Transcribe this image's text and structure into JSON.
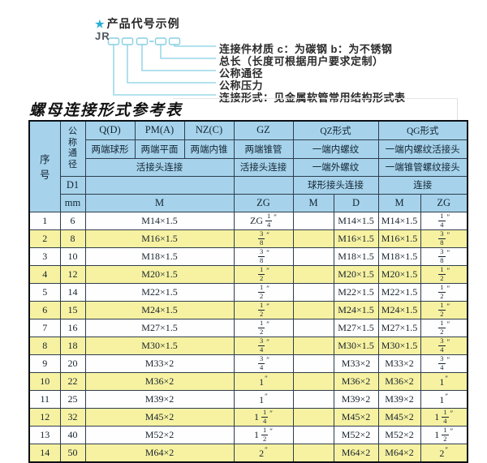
{
  "colors": {
    "header_bg": "#a6d3eb",
    "row_alt_bg": "#f7f2a2",
    "accent_cyan": "#29aed6",
    "line_cyan": "#85cfe3"
  },
  "diagram": {
    "star_label": "产品代号示例",
    "prefix": "JR",
    "box_count": 5,
    "separator": "-",
    "labels": [
      "连接件材质  c：为碳钢  b：为不锈钢",
      "总长（长度可根据用户要求定制）",
      "公称通径",
      "公称压力",
      "连接形式：见金属软管常用结构形式表"
    ]
  },
  "table": {
    "title": "螺母连接形式参考表",
    "unit_inch": "″",
    "header": {
      "seq": "序号",
      "nominal_diameter": "公称通径",
      "d1": "D1",
      "mm": "mm",
      "q": "Q(D)",
      "pm": "PM(A)",
      "nz": "NZ(C)",
      "gz": "GZ",
      "qz": "QZ形式",
      "qg": "QG形式",
      "q_sub": "两端球形",
      "pm_sub": "两端平面",
      "nz_sub": "两端内锥",
      "gz_sub": "两端锥管",
      "qz_sub": "一端内螺纹",
      "qg_sub": "一端内螺纹活接头",
      "union_conn": "活接头连接",
      "gz_conn": "活接头连接",
      "qz_sub2": "一端外螺纹",
      "qg_sub2": "一端锥管螺纹接头",
      "qz_conn": "球形接头连接",
      "qg_conn": "连接",
      "m": "M",
      "zg": "ZG",
      "qz_m": "M",
      "qz_d": "D",
      "qg_m": "M",
      "qg_zg": "ZG"
    },
    "rows": [
      {
        "seq": "1",
        "mm": "6",
        "m": "M14×1.5",
        "gz": {
          "pre": "ZG",
          "frac": [
            "1",
            "4"
          ]
        },
        "qz_m": "",
        "qz_d": "M14×1.5",
        "qg_m": "M14×1.5",
        "qg_zg": {
          "frac": [
            "1",
            "4"
          ]
        }
      },
      {
        "seq": "2",
        "mm": "8",
        "m": "M16×1.5",
        "gz": {
          "frac": [
            "3",
            "8"
          ]
        },
        "qz_m": "",
        "qz_d": "M16×1.5",
        "qg_m": "M16×1.5",
        "qg_zg": {
          "frac": [
            "3",
            "8"
          ]
        }
      },
      {
        "seq": "3",
        "mm": "10",
        "m": "M18×1.5",
        "gz": {
          "frac": [
            "3",
            "8"
          ]
        },
        "qz_m": "",
        "qz_d": "M18×1.5",
        "qg_m": "M18×1.5",
        "qg_zg": {
          "frac": [
            "3",
            "8"
          ]
        }
      },
      {
        "seq": "4",
        "mm": "12",
        "m": "M20×1.5",
        "gz": {
          "frac": [
            "1",
            "2"
          ]
        },
        "qz_m": "",
        "qz_d": "M20×1.5",
        "qg_m": "M20×1.5",
        "qg_zg": {
          "frac": [
            "1",
            "2"
          ]
        }
      },
      {
        "seq": "5",
        "mm": "14",
        "m": "M22×1.5",
        "gz": {
          "frac": [
            "1",
            "2"
          ]
        },
        "qz_m": "",
        "qz_d": "M22×1.5",
        "qg_m": "M22×1.5",
        "qg_zg": {
          "frac": [
            "1",
            "2"
          ]
        }
      },
      {
        "seq": "6",
        "mm": "15",
        "m": "M24×1.5",
        "gz": {
          "frac": [
            "1",
            "2"
          ]
        },
        "qz_m": "",
        "qz_d": "M24×1.5",
        "qg_m": "M24×1.5",
        "qg_zg": {
          "frac": [
            "1",
            "2"
          ]
        }
      },
      {
        "seq": "7",
        "mm": "16",
        "m": "M27×1.5",
        "gz": {
          "frac": [
            "1",
            "2"
          ]
        },
        "qz_m": "",
        "qz_d": "M27×1.5",
        "qg_m": "M27×1.5",
        "qg_zg": {
          "frac": [
            "1",
            "2"
          ]
        }
      },
      {
        "seq": "8",
        "mm": "18",
        "m": "M30×1.5",
        "gz": {
          "frac": [
            "3",
            "4"
          ]
        },
        "qz_m": "",
        "qz_d": "M30×1.5",
        "qg_m": "M30×1.5",
        "qg_zg": {
          "frac": [
            "3",
            "4"
          ]
        }
      },
      {
        "seq": "9",
        "mm": "20",
        "m": "M33×2",
        "gz": {
          "frac": [
            "3",
            "4"
          ]
        },
        "qz_m": "",
        "qz_d": "M33×2",
        "qg_m": "M33×2",
        "qg_zg": {
          "frac": [
            "3",
            "4"
          ]
        }
      },
      {
        "seq": "10",
        "mm": "22",
        "m": "M36×2",
        "gz": {
          "whole": "1"
        },
        "qz_m": "",
        "qz_d": "M36×2",
        "qg_m": "M36×2",
        "qg_zg": {
          "whole": "1"
        }
      },
      {
        "seq": "11",
        "mm": "25",
        "m": "M39×2",
        "gz": {
          "whole": "1"
        },
        "qz_m": "",
        "qz_d": "M39×2",
        "qg_m": "M39×2",
        "qg_zg": {
          "whole": "1"
        }
      },
      {
        "seq": "12",
        "mm": "32",
        "m": "M45×2",
        "gz": {
          "pre": "1",
          "frac": [
            "1",
            "4"
          ]
        },
        "qz_m": "",
        "qz_d": "M45×2",
        "qg_m": "M45×2",
        "qg_zg": {
          "pre": "1",
          "frac": [
            "1",
            "4"
          ]
        }
      },
      {
        "seq": "13",
        "mm": "40",
        "m": "M52×2",
        "gz": {
          "pre": "1",
          "frac": [
            "1",
            "2"
          ]
        },
        "qz_m": "",
        "qz_d": "M52×2",
        "qg_m": "M52×2",
        "qg_zg": {
          "pre": "1",
          "frac": [
            "1",
            "2"
          ]
        }
      },
      {
        "seq": "14",
        "mm": "50",
        "m": "M64×2",
        "gz": {
          "whole": "2"
        },
        "qz_m": "",
        "qz_d": "M64×2",
        "qg_m": "M64×2",
        "qg_zg": {
          "whole": "2"
        }
      }
    ]
  }
}
